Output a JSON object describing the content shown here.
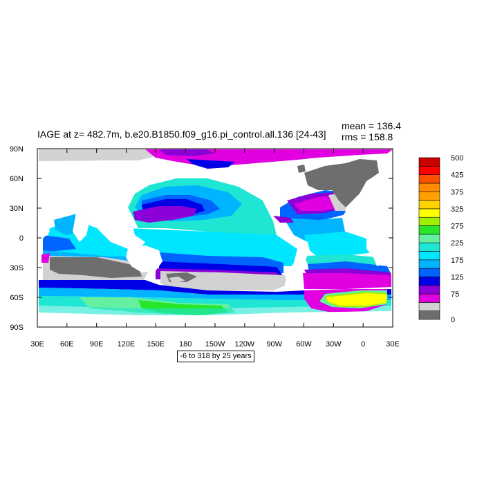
{
  "title": "IAGE at z= 482.7m, b.e20.B1850.f09_g16.pi_control.all.136 [24-43]",
  "stats": {
    "mean": "mean = 136.4",
    "rms": "rms = 158.8"
  },
  "contour_info": "-6 to 318 by 25 years",
  "axes": {
    "x_labels": [
      "30E",
      "60E",
      "90E",
      "120E",
      "150E",
      "180",
      "150W",
      "120W",
      "90W",
      "60W",
      "30W",
      "0",
      "30E"
    ],
    "y_labels": [
      "90N",
      "60N",
      "30N",
      "0",
      "30S",
      "60S",
      "90S"
    ]
  },
  "colorbar": {
    "levels": [
      "0",
      "75",
      "125",
      "175",
      "225",
      "275",
      "325",
      "375",
      "425",
      "500"
    ],
    "colors": [
      "#6e6e6e",
      "#d2d2d2",
      "#e000e0",
      "#8c00d8",
      "#0000e6",
      "#0064ff",
      "#00b4ff",
      "#00e6ff",
      "#1ee6d2",
      "#64f0a0",
      "#28e628",
      "#a0f000",
      "#ffff00",
      "#ffd200",
      "#ffa000",
      "#ff8c00",
      "#ff5000",
      "#ff0000",
      "#c80000"
    ]
  },
  "map_colors": {
    "land": "#ffffff",
    "age_0": "#6e6e6e",
    "age_25": "#d2d2d2",
    "age_50": "#e000e0",
    "age_75": "#8c00d8",
    "age_100": "#0000e6",
    "age_125": "#0064ff",
    "age_150": "#00b4ff",
    "age_175": "#00e6ff",
    "age_200": "#1ee6d2",
    "age_225": "#64f0a0",
    "age_250": "#28e628",
    "age_275": "#a0f000",
    "age_300": "#ffff00"
  }
}
